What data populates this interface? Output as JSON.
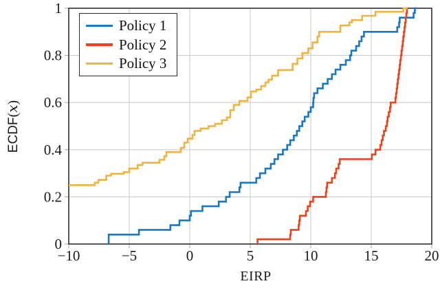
{
  "chart_data": {
    "type": "line",
    "subtype": "ecdf-step",
    "title": "",
    "xlabel": "EIRP",
    "ylabel": "ECDF(x)",
    "ylabel_main": "ECDF",
    "ylabel_open": "(",
    "ylabel_var": "x",
    "ylabel_close": ")",
    "xlim": [
      -10,
      20
    ],
    "ylim": [
      0,
      1
    ],
    "grid": true,
    "legend_position": "top-left",
    "x_ticks": {
      "values": [
        -10,
        -5,
        0,
        5,
        10,
        15,
        20
      ],
      "labels": [
        "−10",
        "−5",
        "0",
        "5",
        "10",
        "15",
        "20"
      ]
    },
    "y_ticks": {
      "values": [
        0,
        0.2,
        0.4,
        0.6,
        0.8,
        1
      ],
      "labels": [
        "0",
        "0.2",
        "0.4",
        "0.6",
        "0.8",
        "1"
      ]
    },
    "frame_color": "#3a3a3a",
    "grid_color": "#cdcdcd",
    "series": [
      {
        "name": "Policy 1",
        "color": "#1b77be",
        "start": [
          -6.7,
          0
        ],
        "end_x": 18.8,
        "points": [
          [
            -6.7,
            0.02
          ],
          [
            -6.7,
            0.04
          ],
          [
            -4.2,
            0.06
          ],
          [
            -1.6,
            0.08
          ],
          [
            -0.85,
            0.1
          ],
          [
            0.0,
            0.12
          ],
          [
            0.1,
            0.14
          ],
          [
            1.05,
            0.16
          ],
          [
            2.4,
            0.18
          ],
          [
            3.0,
            0.2
          ],
          [
            3.3,
            0.22
          ],
          [
            4.1,
            0.24
          ],
          [
            4.2,
            0.26
          ],
          [
            5.5,
            0.28
          ],
          [
            5.8,
            0.3
          ],
          [
            6.25,
            0.32
          ],
          [
            6.7,
            0.34
          ],
          [
            7.0,
            0.36
          ],
          [
            7.3,
            0.38
          ],
          [
            7.7,
            0.4
          ],
          [
            8.05,
            0.42
          ],
          [
            8.3,
            0.44
          ],
          [
            8.6,
            0.46
          ],
          [
            8.85,
            0.48
          ],
          [
            9.05,
            0.5
          ],
          [
            9.3,
            0.52
          ],
          [
            9.5,
            0.54
          ],
          [
            9.8,
            0.56
          ],
          [
            10.0,
            0.58
          ],
          [
            10.2,
            0.6
          ],
          [
            10.22,
            0.62
          ],
          [
            10.28,
            0.64
          ],
          [
            10.55,
            0.66
          ],
          [
            11.0,
            0.68
          ],
          [
            11.4,
            0.7
          ],
          [
            11.75,
            0.72
          ],
          [
            12.05,
            0.74
          ],
          [
            12.45,
            0.76
          ],
          [
            12.9,
            0.78
          ],
          [
            13.25,
            0.8
          ],
          [
            13.35,
            0.82
          ],
          [
            13.75,
            0.84
          ],
          [
            14.0,
            0.86
          ],
          [
            14.2,
            0.88
          ],
          [
            14.4,
            0.9
          ],
          [
            17.15,
            0.92
          ],
          [
            17.3,
            0.94
          ],
          [
            17.35,
            0.96
          ],
          [
            18.5,
            0.98
          ],
          [
            18.6,
            1.0
          ]
        ]
      },
      {
        "name": "Policy 2",
        "color": "#e8431d",
        "start": [
          5.6,
          0
        ],
        "end_x": 18.05,
        "points": [
          [
            5.6,
            0.02
          ],
          [
            8.3,
            0.04
          ],
          [
            8.35,
            0.06
          ],
          [
            9.0,
            0.08
          ],
          [
            9.05,
            0.1
          ],
          [
            9.1,
            0.12
          ],
          [
            9.6,
            0.14
          ],
          [
            9.75,
            0.16
          ],
          [
            9.95,
            0.18
          ],
          [
            10.2,
            0.2
          ],
          [
            11.25,
            0.22
          ],
          [
            11.3,
            0.24
          ],
          [
            11.35,
            0.26
          ],
          [
            11.75,
            0.28
          ],
          [
            12.0,
            0.3
          ],
          [
            12.1,
            0.32
          ],
          [
            12.3,
            0.34
          ],
          [
            12.4,
            0.36
          ],
          [
            15.05,
            0.38
          ],
          [
            15.35,
            0.4
          ],
          [
            15.75,
            0.42
          ],
          [
            15.85,
            0.44
          ],
          [
            15.95,
            0.46
          ],
          [
            16.05,
            0.48
          ],
          [
            16.2,
            0.5
          ],
          [
            16.3,
            0.52
          ],
          [
            16.35,
            0.54
          ],
          [
            16.45,
            0.56
          ],
          [
            16.55,
            0.58
          ],
          [
            16.6,
            0.6
          ],
          [
            17.0,
            0.62
          ],
          [
            17.05,
            0.64
          ],
          [
            17.1,
            0.66
          ],
          [
            17.15,
            0.68
          ],
          [
            17.2,
            0.7
          ],
          [
            17.25,
            0.72
          ],
          [
            17.3,
            0.74
          ],
          [
            17.35,
            0.76
          ],
          [
            17.4,
            0.78
          ],
          [
            17.45,
            0.8
          ],
          [
            17.5,
            0.82
          ],
          [
            17.55,
            0.84
          ],
          [
            17.6,
            0.86
          ],
          [
            17.65,
            0.88
          ],
          [
            17.7,
            0.9
          ],
          [
            17.75,
            0.92
          ],
          [
            17.8,
            0.94
          ],
          [
            17.85,
            0.96
          ],
          [
            17.9,
            0.98
          ],
          [
            17.95,
            1.0
          ]
        ]
      },
      {
        "name": "Policy 3",
        "color": "#edb43e",
        "start": [
          -10,
          0.25
        ],
        "end_x": 18.0,
        "points": [
          [
            -7.85,
            0.26
          ],
          [
            -7.55,
            0.272
          ],
          [
            -6.9,
            0.29
          ],
          [
            -6.5,
            0.298
          ],
          [
            -5.45,
            0.305
          ],
          [
            -5.0,
            0.32
          ],
          [
            -4.3,
            0.335
          ],
          [
            -3.9,
            0.345
          ],
          [
            -2.5,
            0.357
          ],
          [
            -2.1,
            0.372
          ],
          [
            -1.93,
            0.39
          ],
          [
            -0.74,
            0.408
          ],
          [
            -0.45,
            0.43
          ],
          [
            -0.17,
            0.447
          ],
          [
            0.23,
            0.462
          ],
          [
            0.4,
            0.48
          ],
          [
            0.9,
            0.49
          ],
          [
            1.55,
            0.5
          ],
          [
            2.1,
            0.51
          ],
          [
            2.66,
            0.525
          ],
          [
            3.07,
            0.537
          ],
          [
            3.35,
            0.568
          ],
          [
            3.64,
            0.59
          ],
          [
            4.1,
            0.607
          ],
          [
            4.77,
            0.622
          ],
          [
            5.05,
            0.647
          ],
          [
            5.5,
            0.655
          ],
          [
            5.9,
            0.67
          ],
          [
            6.25,
            0.685
          ],
          [
            6.5,
            0.697
          ],
          [
            6.8,
            0.714
          ],
          [
            7.3,
            0.738
          ],
          [
            8.5,
            0.764
          ],
          [
            8.9,
            0.787
          ],
          [
            9.3,
            0.81
          ],
          [
            9.8,
            0.83
          ],
          [
            10.15,
            0.855
          ],
          [
            10.55,
            0.88
          ],
          [
            10.7,
            0.9
          ],
          [
            12.45,
            0.927
          ],
          [
            13.2,
            0.94
          ],
          [
            13.4,
            0.95
          ],
          [
            14.25,
            0.968
          ],
          [
            15.35,
            0.985
          ],
          [
            17.65,
            1.0
          ]
        ]
      }
    ]
  },
  "legend": {
    "items": [
      "Policy 1",
      "Policy 2",
      "Policy 3"
    ]
  }
}
